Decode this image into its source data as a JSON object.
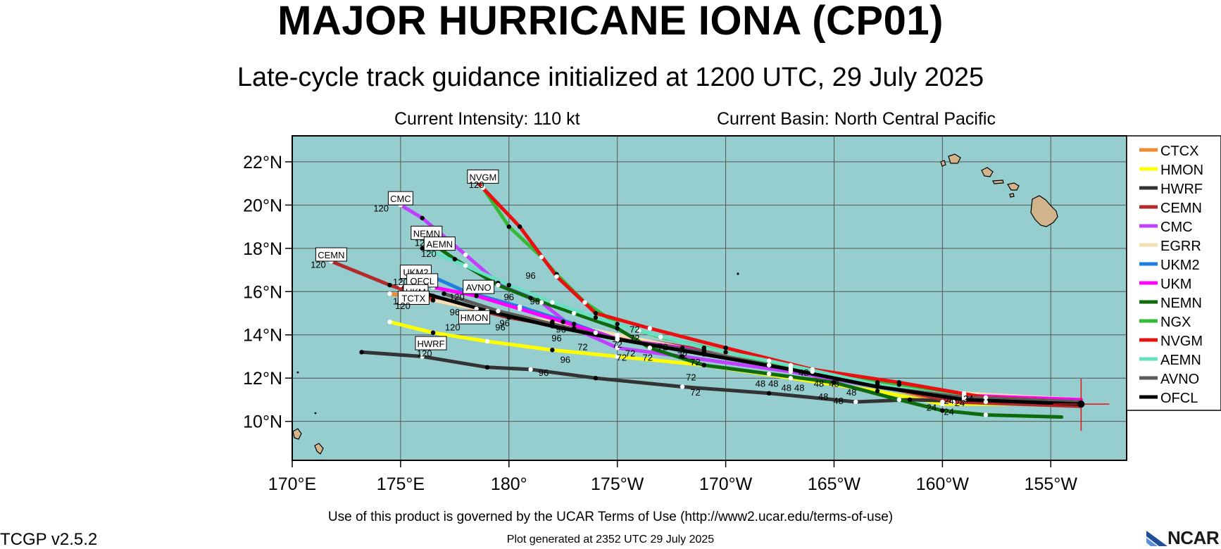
{
  "header": {
    "title": "MAJOR HURRICANE IONA (CP01)",
    "subtitle": "Late-cycle track guidance initialized at 1200 UTC, 29 July 2025",
    "current_intensity": "Current Intensity: 110 kt",
    "current_basin": "Current Basin: North Central Pacific"
  },
  "footer": {
    "terms": "Use of this product is governed by the UCAR Terms of Use (http://www2.ucar.edu/terms-of-use)",
    "generated": "Plot generated at 2352 UTC   29 July 2025",
    "version": "TCGP v2.5.2",
    "logo_text": "NCAR"
  },
  "colors": {
    "ocean": "#96CDCF",
    "land": "#D2B48C",
    "grid": "#555555"
  },
  "chart_data": {
    "type": "map-track",
    "axes": {
      "lon_range": [
        170,
        208.5
      ],
      "lat_range": [
        8.2,
        23.2
      ],
      "lon_ticks": [
        {
          "lon": 170,
          "label": "170°E"
        },
        {
          "lon": 175,
          "label": "175°E"
        },
        {
          "lon": 180,
          "label": "180°"
        },
        {
          "lon": 185,
          "label": "175°W"
        },
        {
          "lon": 190,
          "label": "170°W"
        },
        {
          "lon": 195,
          "label": "165°W"
        },
        {
          "lon": 200,
          "label": "160°W"
        },
        {
          "lon": 205,
          "label": "155°W"
        }
      ],
      "lat_ticks": [
        {
          "lat": 10,
          "label": "10°N"
        },
        {
          "lat": 12,
          "label": "12°N"
        },
        {
          "lat": 14,
          "label": "14°N"
        },
        {
          "lat": 16,
          "label": "16°N"
        },
        {
          "lat": 18,
          "label": "18°N"
        },
        {
          "lat": 20,
          "label": "20°N"
        },
        {
          "lat": 22,
          "label": "22°N"
        }
      ],
      "grid": true
    },
    "storm_position": {
      "lon": 206.4,
      "lat": 10.8
    },
    "legend_position": "right",
    "models": [
      {
        "name": "CTCX",
        "color": "#F0892F",
        "end_label": "TCTX",
        "points": [
          [
            206.4,
            10.8
          ],
          [
            200,
            10.9
          ],
          [
            197,
            11.7
          ],
          [
            193,
            12.6
          ],
          [
            189,
            13.3
          ],
          [
            185,
            13.9
          ],
          [
            182,
            14.6
          ],
          [
            178.5,
            15.2
          ],
          [
            176,
            15.7
          ],
          [
            174.5,
            15.9
          ]
        ]
      },
      {
        "name": "HMON",
        "color": "#FFFF00",
        "end_label": "HMON",
        "points": [
          [
            206.4,
            10.8
          ],
          [
            200,
            10.8
          ],
          [
            197,
            11.4
          ],
          [
            193,
            12.0
          ],
          [
            189,
            12.6
          ],
          [
            185,
            13.0
          ],
          [
            182,
            13.3
          ],
          [
            179,
            13.7
          ],
          [
            176.5,
            14.1
          ],
          [
            174.5,
            14.6
          ]
        ]
      },
      {
        "name": "HWRF",
        "color": "#333333",
        "end_label": "HWRF",
        "points": [
          [
            206.4,
            10.8
          ],
          [
            202,
            10.9
          ],
          [
            198.5,
            11.0
          ],
          [
            196,
            10.9
          ],
          [
            192,
            11.3
          ],
          [
            188,
            11.6
          ],
          [
            184,
            12.0
          ],
          [
            181,
            12.4
          ],
          [
            179,
            12.5
          ],
          [
            176,
            13.0
          ],
          [
            173.2,
            13.2
          ]
        ]
      },
      {
        "name": "CEMN",
        "color": "#B22A2A",
        "end_label": "CEMN",
        "points": [
          [
            206.4,
            10.7
          ],
          [
            200.5,
            10.9
          ],
          [
            197,
            11.7
          ],
          [
            193,
            12.4
          ],
          [
            189,
            13.3
          ],
          [
            184,
            14.1
          ],
          [
            180,
            14.8
          ],
          [
            176,
            15.8
          ],
          [
            174.5,
            16.3
          ],
          [
            171.8,
            17.4
          ]
        ]
      },
      {
        "name": "CMC",
        "color": "#C040FF",
        "end_label": "CMC",
        "points": [
          [
            206.4,
            10.9
          ],
          [
            201,
            11.0
          ],
          [
            197,
            11.6
          ],
          [
            193,
            12.3
          ],
          [
            188,
            13.0
          ],
          [
            185,
            13.4
          ],
          [
            183,
            14.3
          ],
          [
            181.5,
            15.5
          ],
          [
            179.5,
            16.4
          ],
          [
            178,
            17.7
          ],
          [
            176,
            19.4
          ],
          [
            175,
            20.0
          ]
        ]
      },
      {
        "name": "EGRR",
        "color": "#F5DEB3",
        "end_label": "",
        "points": [
          [
            206.4,
            11.0
          ],
          [
            201,
            11.3
          ],
          [
            197,
            11.8
          ],
          [
            193,
            12.5
          ],
          [
            189,
            13.2
          ],
          [
            185,
            14.0
          ],
          [
            182,
            14.6
          ],
          [
            179,
            15.1
          ],
          [
            176.5,
            15.6
          ]
        ]
      },
      {
        "name": "UKM2",
        "color": "#1E7FE0",
        "end_label": "UKM2",
        "points": [
          [
            206.4,
            10.9
          ],
          [
            201,
            11.1
          ],
          [
            197,
            11.7
          ],
          [
            192,
            12.6
          ],
          [
            188,
            13.3
          ],
          [
            185,
            13.8
          ],
          [
            183,
            14.5
          ],
          [
            180.5,
            15.3
          ],
          [
            178,
            16.0
          ],
          [
            176,
            16.9
          ]
        ]
      },
      {
        "name": "UKM",
        "color": "#FF00FF",
        "end_label": "UKM",
        "points": [
          [
            206.4,
            11.0
          ],
          [
            201,
            11.2
          ],
          [
            197,
            11.7
          ],
          [
            192,
            12.6
          ],
          [
            188,
            13.4
          ],
          [
            185,
            13.8
          ],
          [
            182.5,
            14.6
          ],
          [
            180.5,
            15.2
          ],
          [
            178.5,
            15.8
          ],
          [
            176.5,
            16.2
          ]
        ]
      },
      {
        "name": "NEMN",
        "color": "#0D6B0D",
        "end_label": "NEMN",
        "points": [
          [
            205.5,
            10.2
          ],
          [
            202,
            10.3
          ],
          [
            200,
            10.5
          ],
          [
            198,
            11.0
          ],
          [
            195,
            11.8
          ],
          [
            192,
            12.2
          ],
          [
            189,
            12.6
          ],
          [
            186.5,
            13.4
          ],
          [
            185,
            14.3
          ],
          [
            183,
            15.0
          ],
          [
            181,
            15.7
          ],
          [
            179.5,
            16.3
          ],
          [
            177.5,
            17.5
          ],
          [
            176.5,
            18.2
          ]
        ]
      },
      {
        "name": "NGX",
        "color": "#33BB33",
        "end_label": "NVGM",
        "points": [
          [
            206.4,
            10.9
          ],
          [
            202,
            11.1
          ],
          [
            198,
            11.7
          ],
          [
            194,
            12.3
          ],
          [
            190,
            13.2
          ],
          [
            187,
            13.9
          ],
          [
            185,
            14.5
          ],
          [
            183.5,
            15.5
          ],
          [
            182.2,
            16.8
          ],
          [
            181.5,
            17.6
          ],
          [
            180,
            19.0
          ],
          [
            178.8,
            20.8
          ],
          [
            178.5,
            21.1
          ]
        ]
      },
      {
        "name": "NVGM",
        "color": "#E81010",
        "end_label": "",
        "points": [
          [
            206.4,
            10.9
          ],
          [
            202,
            11.1
          ],
          [
            198,
            11.8
          ],
          [
            194,
            12.4
          ],
          [
            190,
            13.4
          ],
          [
            186.5,
            14.3
          ],
          [
            184,
            15.0
          ],
          [
            182.2,
            16.7
          ],
          [
            180.5,
            19.0
          ],
          [
            178.5,
            21.1
          ]
        ]
      },
      {
        "name": "AEMN",
        "color": "#66E0C0",
        "end_label": "AEMN",
        "points": [
          [
            206.4,
            10.9
          ],
          [
            201,
            11.1
          ],
          [
            197,
            11.7
          ],
          [
            192,
            12.8
          ],
          [
            189,
            13.4
          ],
          [
            186,
            14.2
          ],
          [
            184,
            14.8
          ],
          [
            182,
            15.5
          ],
          [
            180,
            16.3
          ],
          [
            178,
            17.2
          ],
          [
            176,
            18.0
          ]
        ]
      },
      {
        "name": "AVNO",
        "color": "#5A5A5A",
        "end_label": "AVNO",
        "points": [
          [
            206.4,
            10.9
          ],
          [
            201,
            11.1
          ],
          [
            197,
            11.6
          ],
          [
            193,
            12.4
          ],
          [
            189,
            13.2
          ],
          [
            185,
            13.8
          ],
          [
            182,
            14.5
          ],
          [
            179.5,
            15.1
          ],
          [
            177,
            15.9
          ]
        ]
      },
      {
        "name": "OFCL",
        "color": "#000000",
        "end_label": "OFCL",
        "points": [
          [
            206.4,
            10.8
          ],
          [
            201,
            11.0
          ],
          [
            197,
            11.6
          ],
          [
            193,
            12.4
          ],
          [
            189,
            13.1
          ],
          [
            185,
            13.8
          ],
          [
            182,
            14.4
          ],
          [
            179,
            15.1
          ],
          [
            176.5,
            15.8
          ],
          [
            175,
            16.3
          ]
        ]
      }
    ],
    "end_labels": [
      {
        "text": "NVGM",
        "lon": 178.8,
        "lat": 21.3,
        "hour": "120",
        "hour_lon": 178.5,
        "hour_lat": 20.8
      },
      {
        "text": "CMC",
        "lon": 175.0,
        "lat": 20.3,
        "hour": "120",
        "hour_lon": 174.1,
        "hour_lat": 19.7
      },
      {
        "text": "NEMN",
        "lon": 176.2,
        "lat": 18.7,
        "hour": "120",
        "hour_lon": 176.0,
        "hour_lat": 18.1
      },
      {
        "text": "AEMN",
        "lon": 176.8,
        "lat": 18.2,
        "hour": "120",
        "hour_lon": 176.3,
        "hour_lat": 17.6
      },
      {
        "text": "CEMN",
        "lon": 171.8,
        "lat": 17.7,
        "hour": "120",
        "hour_lon": 171.2,
        "hour_lat": 17.1
      },
      {
        "text": "UKM2",
        "lon": 175.7,
        "lat": 16.9,
        "hour": "120",
        "hour_lon": 175.0,
        "hour_lat": 16.3
      },
      {
        "text": "OFCL",
        "lon": 176.0,
        "lat": 16.5,
        "hour": "120",
        "hour_lon": 175.4,
        "hour_lat": 15.9
      },
      {
        "text": "UKM",
        "lon": 175.7,
        "lat": 16.0,
        "hour": "120",
        "hour_lon": 175.0,
        "hour_lat": 15.4
      },
      {
        "text": "TCTX",
        "lon": 175.6,
        "lat": 15.7,
        "hour": "120",
        "hour_lon": 175.1,
        "hour_lat": 15.2
      },
      {
        "text": "AVNO",
        "lon": 178.6,
        "lat": 16.2,
        "hour": "120",
        "hour_lon": 177.6,
        "hour_lat": 15.6
      },
      {
        "text": "HMON",
        "lon": 178.4,
        "lat": 14.8,
        "hour": "120",
        "hour_lon": 177.4,
        "hour_lat": 14.2
      },
      {
        "text": "HWRF",
        "lon": 176.4,
        "lat": 13.6,
        "hour": "120",
        "hour_lon": 176.1,
        "hour_lat": 13.0
      }
    ],
    "hour_labels": [
      {
        "text": "96",
        "lon": 181.0,
        "lat": 16.6
      },
      {
        "text": "96",
        "lon": 180.0,
        "lat": 15.6
      },
      {
        "text": "96",
        "lon": 181.2,
        "lat": 15.4
      },
      {
        "text": "96",
        "lon": 177.5,
        "lat": 14.9
      },
      {
        "text": "96",
        "lon": 179.8,
        "lat": 14.4
      },
      {
        "text": "96",
        "lon": 182.4,
        "lat": 14.1
      },
      {
        "text": "96",
        "lon": 182.2,
        "lat": 13.7
      },
      {
        "text": "96",
        "lon": 182.6,
        "lat": 12.7
      },
      {
        "text": "96",
        "lon": 181.6,
        "lat": 12.1
      },
      {
        "text": "96",
        "lon": 179.6,
        "lat": 14.2
      },
      {
        "text": "72",
        "lon": 185.8,
        "lat": 14.1
      },
      {
        "text": "72",
        "lon": 185.8,
        "lat": 13.7
      },
      {
        "text": "72",
        "lon": 185.0,
        "lat": 13.4
      },
      {
        "text": "72",
        "lon": 185.6,
        "lat": 13.0
      },
      {
        "text": "72",
        "lon": 183.4,
        "lat": 13.3
      },
      {
        "text": "72",
        "lon": 187.1,
        "lat": 13.3
      },
      {
        "text": "72",
        "lon": 188.0,
        "lat": 12.9
      },
      {
        "text": "72",
        "lon": 186.4,
        "lat": 12.8
      },
      {
        "text": "72",
        "lon": 185.2,
        "lat": 12.8
      },
      {
        "text": "72",
        "lon": 188.6,
        "lat": 12.6
      },
      {
        "text": "72",
        "lon": 188.4,
        "lat": 11.9
      },
      {
        "text": "72",
        "lon": 188.6,
        "lat": 11.2
      },
      {
        "text": "48",
        "lon": 193.6,
        "lat": 12.1
      },
      {
        "text": "48",
        "lon": 191.6,
        "lat": 11.6
      },
      {
        "text": "48",
        "lon": 192.2,
        "lat": 11.6
      },
      {
        "text": "48",
        "lon": 192.8,
        "lat": 11.4
      },
      {
        "text": "48",
        "lon": 193.4,
        "lat": 11.4
      },
      {
        "text": "48",
        "lon": 194.3,
        "lat": 11.6
      },
      {
        "text": "48",
        "lon": 195.0,
        "lat": 11.6
      },
      {
        "text": "48",
        "lon": 194.5,
        "lat": 11.0
      },
      {
        "text": "48",
        "lon": 195.2,
        "lat": 10.8
      },
      {
        "text": "48",
        "lon": 195.8,
        "lat": 11.2
      },
      {
        "text": "24",
        "lon": 199.5,
        "lat": 10.5
      },
      {
        "text": "24",
        "lon": 200.3,
        "lat": 10.8
      },
      {
        "text": "24",
        "lon": 200.8,
        "lat": 10.7
      },
      {
        "text": "24",
        "lon": 200.3,
        "lat": 10.3
      },
      {
        "text": "24",
        "lon": 201.2,
        "lat": 10.9
      }
    ]
  }
}
